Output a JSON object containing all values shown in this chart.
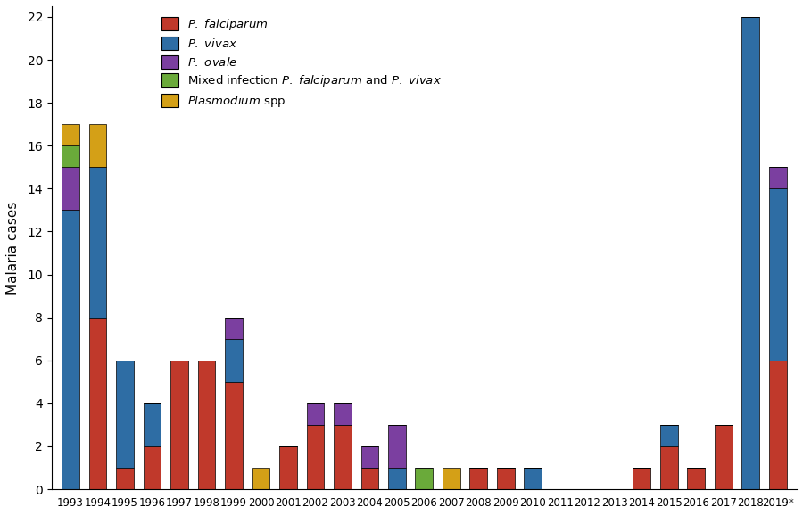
{
  "year_labels": [
    "1993",
    "1994",
    "1995",
    "1996",
    "1997",
    "1998",
    "1999",
    "2000",
    "2001",
    "2002",
    "2003",
    "2004",
    "2005",
    "2006",
    "2007",
    "2008",
    "2009",
    "2010",
    "2011",
    "2012",
    "2013",
    "2014",
    "2015",
    "2016",
    "2017",
    "2018",
    "2019*"
  ],
  "falciparum": [
    0,
    8,
    1,
    2,
    6,
    6,
    5,
    0,
    2,
    3,
    3,
    1,
    0,
    0,
    0,
    1,
    1,
    0,
    0,
    0,
    0,
    1,
    2,
    1,
    3,
    0,
    6
  ],
  "vivax": [
    13,
    7,
    5,
    2,
    0,
    0,
    2,
    0,
    0,
    0,
    0,
    0,
    1,
    0,
    0,
    0,
    0,
    1,
    0,
    0,
    0,
    0,
    1,
    0,
    0,
    22,
    8
  ],
  "ovale": [
    2,
    0,
    0,
    0,
    0,
    0,
    1,
    0,
    0,
    1,
    1,
    1,
    2,
    0,
    0,
    0,
    0,
    0,
    0,
    0,
    0,
    0,
    0,
    0,
    0,
    0,
    1
  ],
  "mixed": [
    1,
    0,
    0,
    0,
    0,
    0,
    0,
    0,
    0,
    0,
    0,
    0,
    0,
    1,
    0,
    0,
    0,
    0,
    0,
    0,
    0,
    0,
    0,
    0,
    0,
    0,
    0
  ],
  "plasmodium": [
    1,
    2,
    0,
    0,
    0,
    0,
    0,
    1,
    0,
    0,
    0,
    0,
    0,
    0,
    1,
    0,
    0,
    0,
    0,
    0,
    0,
    0,
    0,
    0,
    0,
    0,
    0
  ],
  "colors": {
    "falciparum": "#c0392b",
    "vivax": "#2e6da4",
    "ovale": "#7b3fa0",
    "mixed": "#6aaa3a",
    "plasmodium": "#d4a017"
  },
  "ylabel": "Malaria cases",
  "ylim": [
    0,
    22.5
  ],
  "yticks": [
    0,
    2,
    4,
    6,
    8,
    10,
    12,
    14,
    16,
    18,
    20,
    22
  ],
  "figsize": [
    9.0,
    5.77
  ],
  "dpi": 100,
  "bar_width": 0.65
}
